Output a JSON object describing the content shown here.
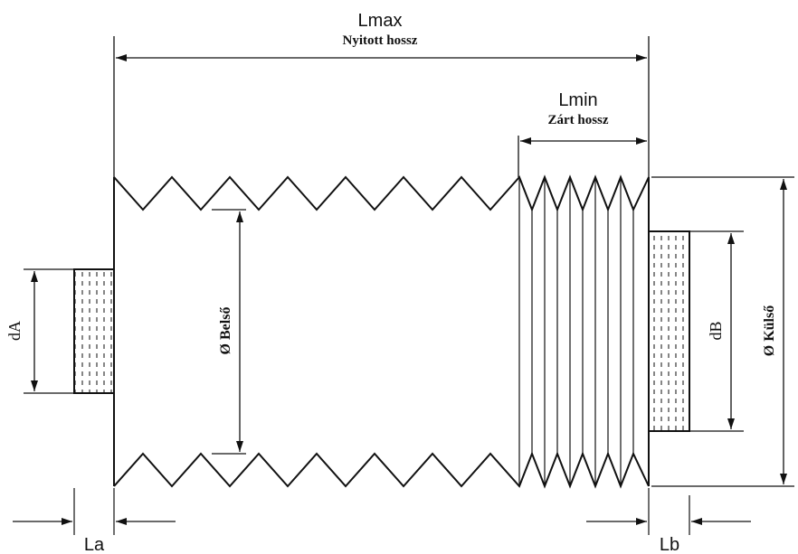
{
  "labels": {
    "lmax": "Lmax",
    "lmax_sub": "Nyitott hossz",
    "lmin": "Lmin",
    "lmin_sub": "Zárt hossz",
    "belso": "Ø Belső",
    "kulso": "Ø Külső",
    "da": "dA",
    "db": "dB",
    "la": "La",
    "lb": "Lb"
  },
  "colors": {
    "stroke": "#111111",
    "background": "#ffffff"
  }
}
